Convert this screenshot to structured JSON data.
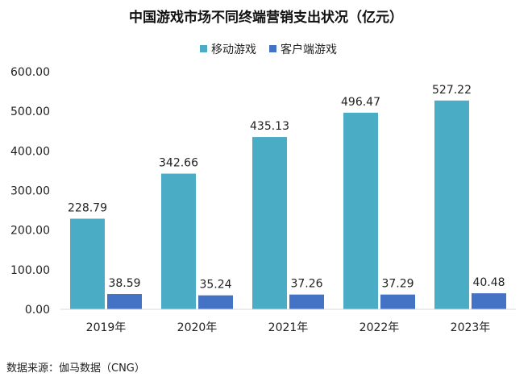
{
  "chart_data": {
    "type": "bar",
    "title": "中国游戏市场不同终端营销支出状况（亿元）",
    "categories": [
      "2019年",
      "2020年",
      "2021年",
      "2022年",
      "2023年"
    ],
    "series": [
      {
        "name": "移动游戏",
        "color": "#4bacc6",
        "values": [
          228.79,
          342.66,
          435.13,
          496.47,
          527.22
        ],
        "labels": [
          "228.79",
          "342.66",
          "435.13",
          "496.47",
          "527.22"
        ]
      },
      {
        "name": "客户端游戏",
        "color": "#4472c4",
        "values": [
          38.59,
          35.24,
          37.26,
          37.29,
          40.48
        ],
        "labels": [
          "38.59",
          "35.24",
          "37.26",
          "37.29",
          "40.48"
        ]
      }
    ],
    "yticks": [
      "0.00",
      "100.00",
      "200.00",
      "300.00",
      "400.00",
      "500.00",
      "600.00"
    ],
    "ylim": [
      0,
      600
    ],
    "grid": false,
    "legend": "top-center",
    "xlabel": "",
    "ylabel": ""
  },
  "source": "数据来源：伽马数据（CNG）"
}
